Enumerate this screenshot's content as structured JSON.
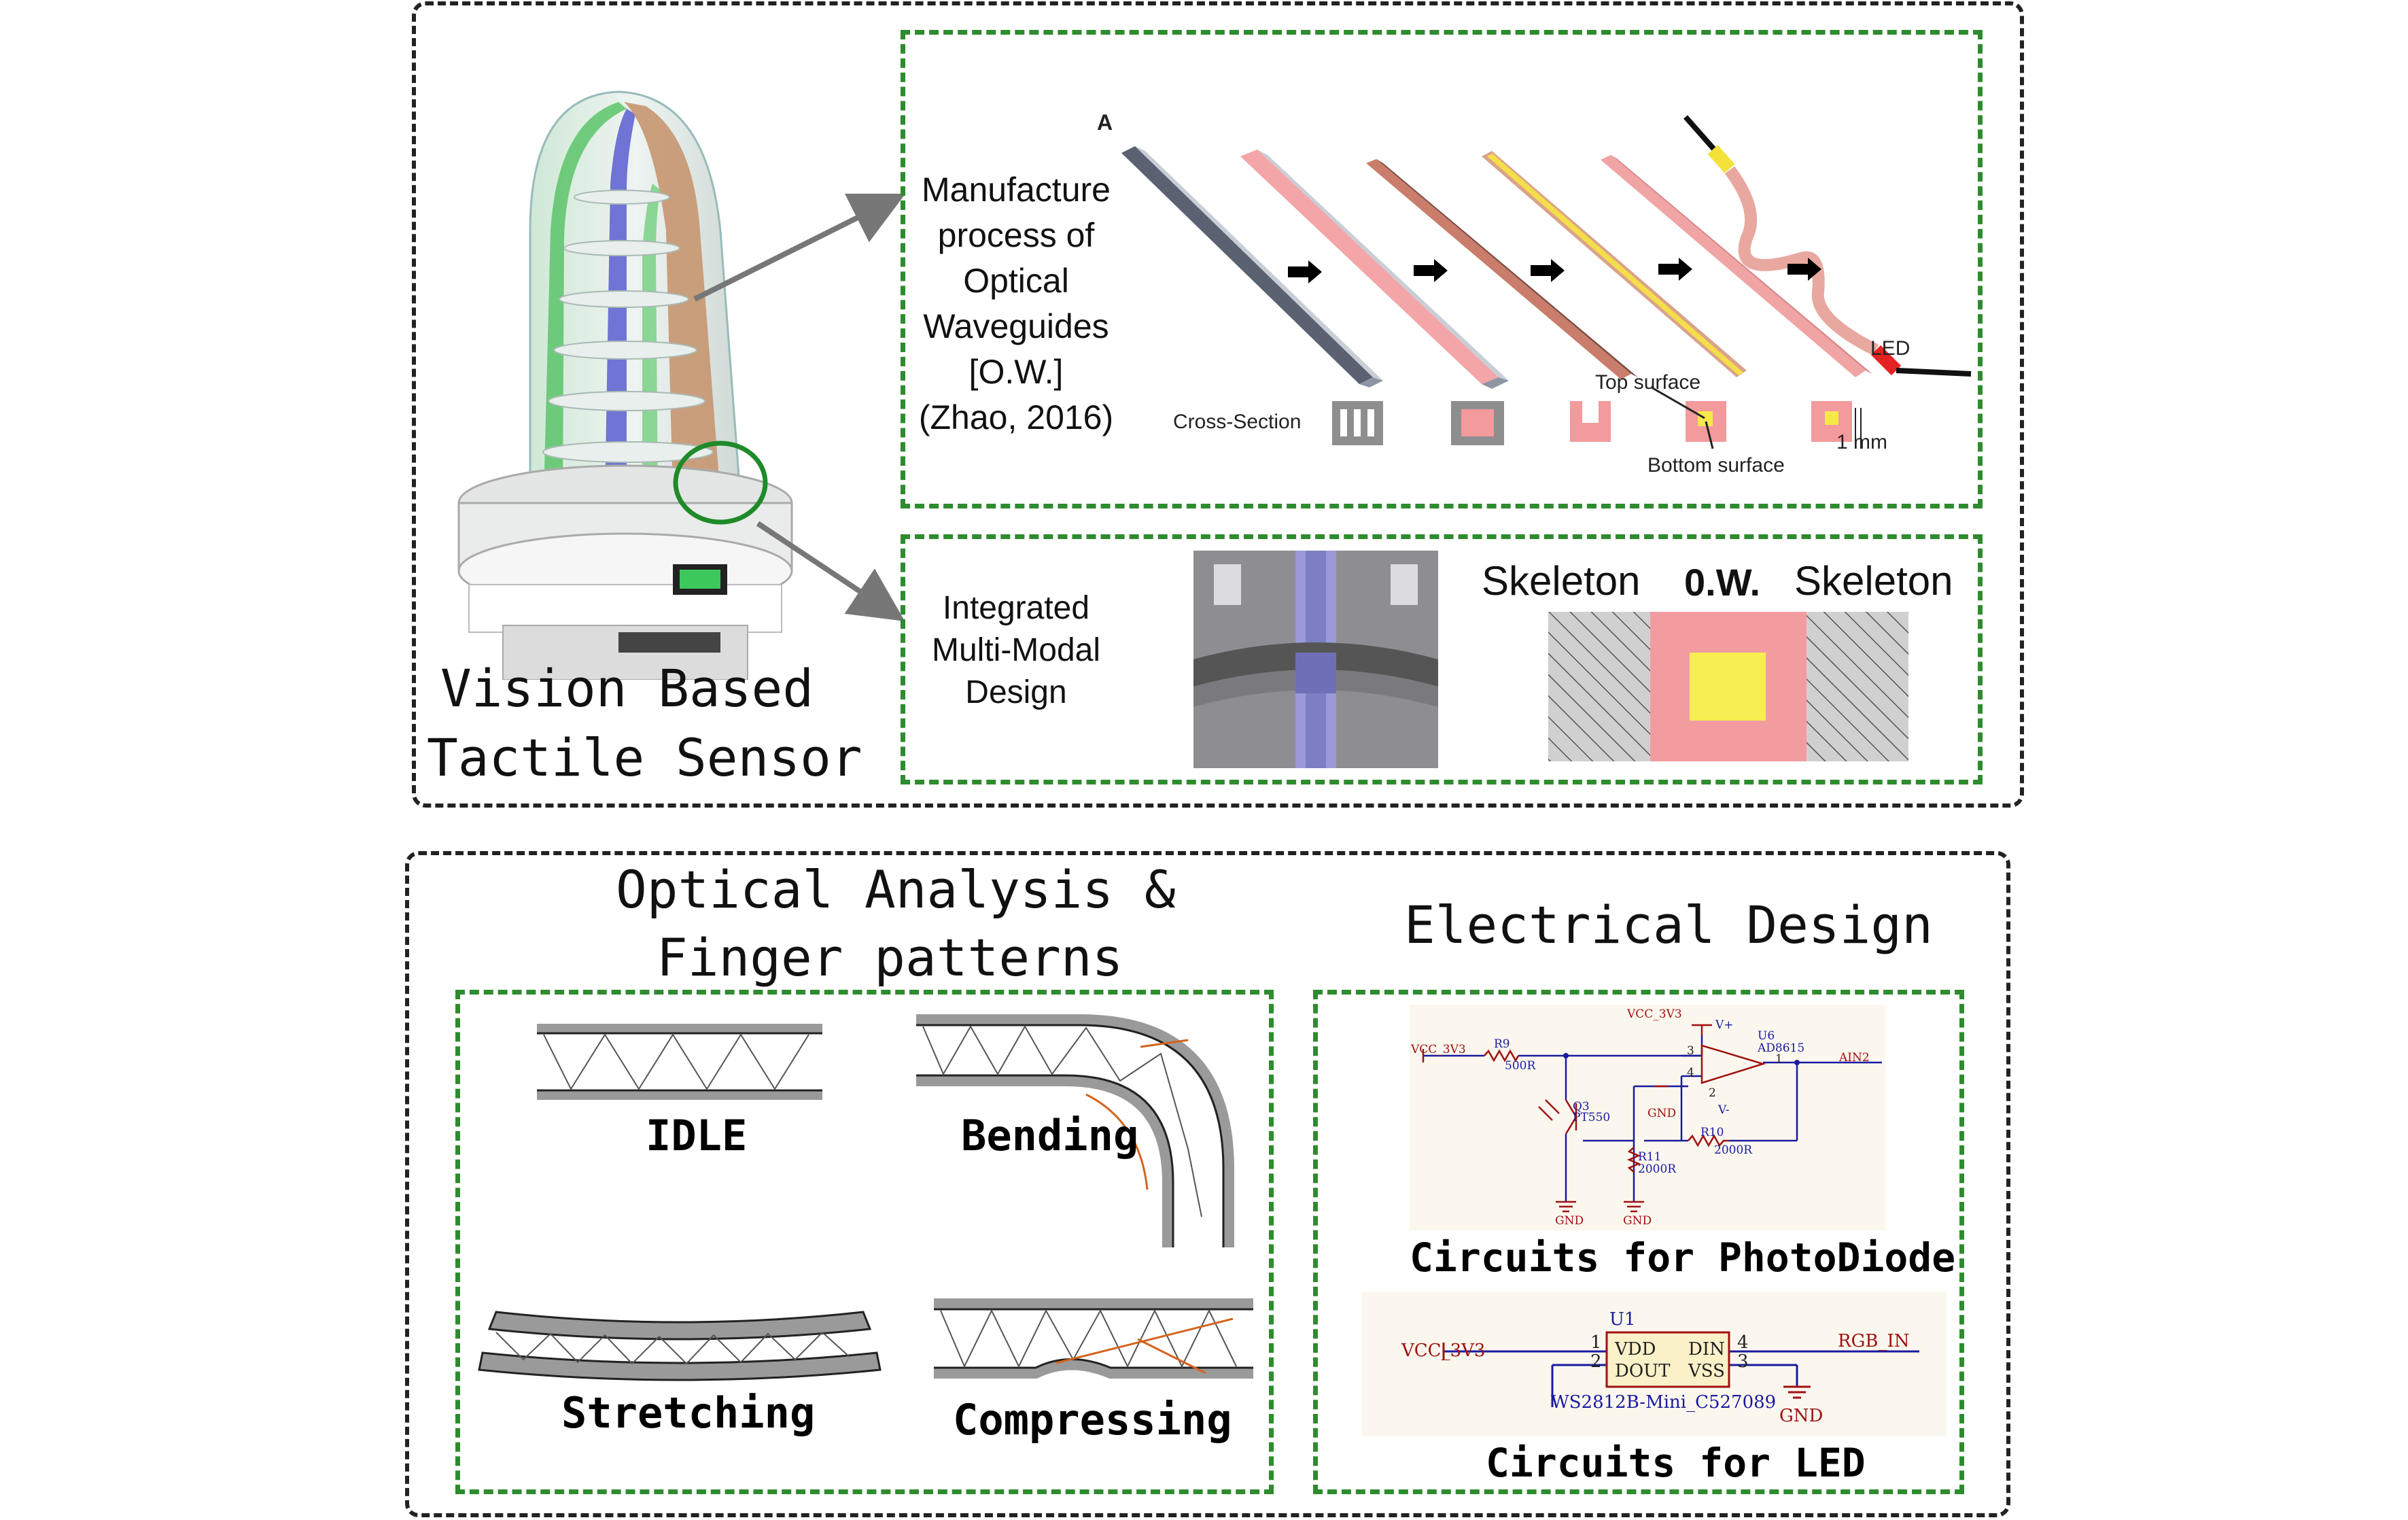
{
  "top": {
    "sensor_title_line1": "Vision Based",
    "sensor_title_line2": "Tactile Sensor",
    "manufacture": {
      "line1": "Manufacture",
      "line2": "process of",
      "line3": "Optical",
      "line4": "Waveguides",
      "line5": "[O.W.]",
      "line6": "(Zhao, 2016)",
      "panel_letter": "A",
      "cross_section_label": "Cross-Section",
      "top_surface_label": "Top surface",
      "bottom_surface_label": "Bottom surface",
      "dimension_label": "1 mm",
      "led_label": "LED"
    },
    "integrated": {
      "line1": "Integrated",
      "line2": "Multi-Modal",
      "line3": "Design",
      "skeleton_left": "Skeleton",
      "ow_label": "0.W.",
      "skeleton_right": "Skeleton"
    }
  },
  "bottom": {
    "optical_title_line1": "Optical Analysis &",
    "optical_title_line2": "Finger patterns",
    "patterns": {
      "idle": "IDLE",
      "bending": "Bending",
      "stretching": "Stretching",
      "compressing": "Compressing"
    },
    "electrical_title": "Electrical Design",
    "photodiode_circuit": {
      "caption": "Circuits for PhotoDiode",
      "vcc_top": "VCC_3V3",
      "vcc_left": "VCC_3V3",
      "r9": "R9",
      "r9_val": "500R",
      "u6": "U6",
      "u6_part": "AD8615",
      "vplus": "V+",
      "vminus": "V-",
      "pin3": "3",
      "pin4": "4",
      "pin1": "1",
      "pin2": "2",
      "ain2": "AIN2",
      "q3": "Q3",
      "q3_part": "PT550",
      "gnd_inline": "GND",
      "r10": "R10",
      "r10_val": "2000R",
      "r11": "R11",
      "r11_val": "2000R",
      "gnd1": "GND",
      "gnd2": "GND"
    },
    "led_circuit": {
      "caption": "Circuits for LED",
      "vcc": "VCC_3V3",
      "u1": "U1",
      "vdd": "VDD",
      "dout": "DOUT",
      "din": "DIN",
      "vss": "VSS",
      "pin1": "1",
      "pin2": "2",
      "pin4": "4",
      "pin3": "3",
      "rgb_in": "RGB_IN",
      "part": "WS2812B-Mini_C527089",
      "gnd": "GND"
    }
  },
  "colors": {
    "green_dash": "#2e8b2e",
    "black_dash": "#222222",
    "waveguide_pink": "#f4a0a4",
    "waveguide_yellow": "#f5ef4a",
    "schematic_red": "#a01010",
    "schematic_blue": "#1a1aa0",
    "schematic_bg": "#fbf7ee"
  }
}
